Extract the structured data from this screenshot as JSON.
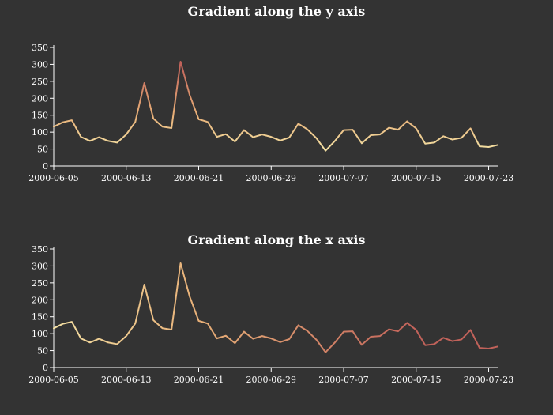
{
  "background": "#333333",
  "chart_data": [
    {
      "type": "line",
      "title": "Gradient along the y axis",
      "gradient": "y",
      "gradient_stops": [
        {
          "at": 50,
          "color": "#f3dfa2"
        },
        {
          "at": 150,
          "color": "#e8b078"
        },
        {
          "at": 300,
          "color": "#c1625a"
        }
      ],
      "ylim": [
        0,
        350
      ],
      "yticks": [
        0,
        50,
        100,
        150,
        200,
        250,
        300,
        350
      ],
      "xlim": [
        "2000-06-05",
        "2000-07-24"
      ],
      "xticks": [
        "2000-06-05",
        "2000-06-13",
        "2000-06-21",
        "2000-06-29",
        "2000-07-07",
        "2000-07-15",
        "2000-07-23"
      ],
      "x": [
        "2000-06-05",
        "2000-06-06",
        "2000-06-07",
        "2000-06-08",
        "2000-06-09",
        "2000-06-10",
        "2000-06-11",
        "2000-06-12",
        "2000-06-13",
        "2000-06-14",
        "2000-06-15",
        "2000-06-16",
        "2000-06-17",
        "2000-06-18",
        "2000-06-19",
        "2000-06-20",
        "2000-06-21",
        "2000-06-22",
        "2000-06-23",
        "2000-06-24",
        "2000-06-25",
        "2000-06-26",
        "2000-06-27",
        "2000-06-28",
        "2000-06-29",
        "2000-06-30",
        "2000-07-01",
        "2000-07-02",
        "2000-07-03",
        "2000-07-04",
        "2000-07-05",
        "2000-07-06",
        "2000-07-07",
        "2000-07-08",
        "2000-07-09",
        "2000-07-10",
        "2000-07-11",
        "2000-07-12",
        "2000-07-13",
        "2000-07-14",
        "2000-07-15",
        "2000-07-16",
        "2000-07-17",
        "2000-07-18",
        "2000-07-19",
        "2000-07-20",
        "2000-07-21",
        "2000-07-22",
        "2000-07-23",
        "2000-07-24"
      ],
      "series": [
        {
          "values": [
            116,
            129,
            135,
            86,
            74,
            85,
            74,
            69,
            93,
            130,
            245,
            140,
            116,
            112,
            308,
            210,
            138,
            130,
            86,
            94,
            72,
            106,
            85,
            93,
            86,
            75,
            84,
            125,
            108,
            82,
            45,
            73,
            106,
            107,
            67,
            91,
            93,
            113,
            107,
            132,
            111,
            66,
            69,
            88,
            78,
            83,
            111,
            58,
            56,
            62
          ]
        }
      ]
    },
    {
      "type": "line",
      "title": "Gradient along the x axis",
      "gradient": "x",
      "gradient_stops": [
        {
          "at": "2000-06-05",
          "color": "#f3dfa2"
        },
        {
          "at": "2000-06-21",
          "color": "#e8b078"
        },
        {
          "at": "2000-07-15",
          "color": "#c1625a"
        }
      ],
      "ylim": [
        0,
        350
      ],
      "yticks": [
        0,
        50,
        100,
        150,
        200,
        250,
        300,
        350
      ],
      "xlim": [
        "2000-06-05",
        "2000-07-24"
      ],
      "xticks": [
        "2000-06-05",
        "2000-06-13",
        "2000-06-21",
        "2000-06-29",
        "2000-07-07",
        "2000-07-15",
        "2000-07-23"
      ],
      "x": [
        "2000-06-05",
        "2000-06-06",
        "2000-06-07",
        "2000-06-08",
        "2000-06-09",
        "2000-06-10",
        "2000-06-11",
        "2000-06-12",
        "2000-06-13",
        "2000-06-14",
        "2000-06-15",
        "2000-06-16",
        "2000-06-17",
        "2000-06-18",
        "2000-06-19",
        "2000-06-20",
        "2000-06-21",
        "2000-06-22",
        "2000-06-23",
        "2000-06-24",
        "2000-06-25",
        "2000-06-26",
        "2000-06-27",
        "2000-06-28",
        "2000-06-29",
        "2000-06-30",
        "2000-07-01",
        "2000-07-02",
        "2000-07-03",
        "2000-07-04",
        "2000-07-05",
        "2000-07-06",
        "2000-07-07",
        "2000-07-08",
        "2000-07-09",
        "2000-07-10",
        "2000-07-11",
        "2000-07-12",
        "2000-07-13",
        "2000-07-14",
        "2000-07-15",
        "2000-07-16",
        "2000-07-17",
        "2000-07-18",
        "2000-07-19",
        "2000-07-20",
        "2000-07-21",
        "2000-07-22",
        "2000-07-23",
        "2000-07-24"
      ],
      "series": [
        {
          "values": [
            116,
            129,
            135,
            86,
            74,
            85,
            74,
            69,
            93,
            130,
            245,
            140,
            116,
            112,
            308,
            210,
            138,
            130,
            86,
            94,
            72,
            106,
            85,
            93,
            86,
            75,
            84,
            125,
            108,
            82,
            45,
            73,
            106,
            107,
            67,
            91,
            93,
            113,
            107,
            132,
            111,
            66,
            69,
            88,
            78,
            83,
            111,
            58,
            56,
            62
          ]
        }
      ]
    }
  ]
}
